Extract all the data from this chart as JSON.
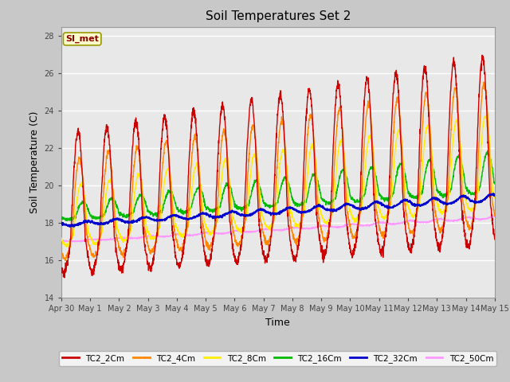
{
  "title": "Soil Temperatures Set 2",
  "xlabel": "Time",
  "ylabel": "Soil Temperature (C)",
  "ylim": [
    14,
    28.5
  ],
  "yticks": [
    14,
    16,
    18,
    20,
    22,
    24,
    26,
    28
  ],
  "annotation": "SI_met",
  "fig_bg_color": "#c8c8c8",
  "plot_bg_color": "#e8e8e8",
  "series": {
    "TC2_2Cm": {
      "color": "#cc0000",
      "lw": 1.0
    },
    "TC2_4Cm": {
      "color": "#ff8800",
      "lw": 1.0
    },
    "TC2_8Cm": {
      "color": "#ffee00",
      "lw": 1.0
    },
    "TC2_16Cm": {
      "color": "#00bb00",
      "lw": 1.0
    },
    "TC2_32Cm": {
      "color": "#0000cc",
      "lw": 1.3
    },
    "TC2_50Cm": {
      "color": "#ff99ff",
      "lw": 1.0
    }
  },
  "xtick_labels": [
    "Apr 30",
    "May 1",
    "May 2",
    "May 3",
    "May 4",
    "May 5",
    "May 6",
    "May 7",
    "May 8",
    "May 9",
    "May 10",
    "May 11",
    "May 12",
    "May 13",
    "May 14",
    "May 15"
  ],
  "num_days": 15,
  "pts_per_day": 144
}
